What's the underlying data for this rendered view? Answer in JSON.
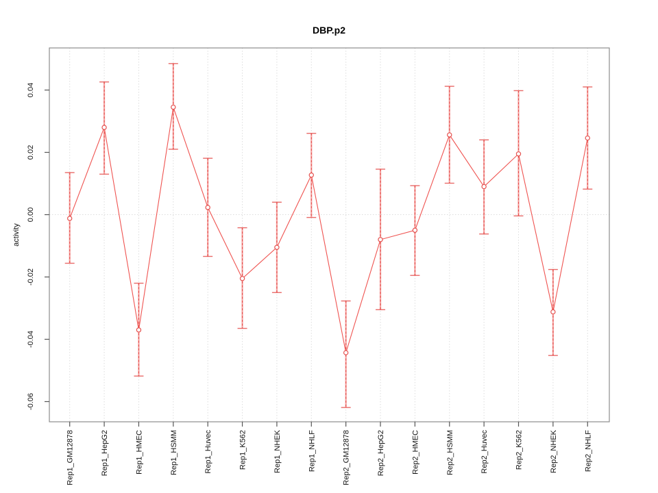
{
  "figure": {
    "background": "#ffffff"
  },
  "chart_data": {
    "type": "line",
    "title": "DBP.p2",
    "xlabel": "",
    "ylabel": "activity",
    "legend": "none",
    "grid": "vertical dotted gridline at each category; horizontal dotted line at y=0 only",
    "ylim": [
      -0.065,
      0.05
    ],
    "y_tick_values": [
      0.04,
      0.02,
      0.0,
      -0.02,
      -0.04,
      -0.06
    ],
    "y_tick_labels": [
      "0.04",
      "0.02",
      "0.00",
      "-0.02",
      "-0.04",
      "-0.06"
    ],
    "categories": [
      "Rep1_GM12878",
      "Rep1_HepG2",
      "Rep1_HMEC",
      "Rep1_HSMM",
      "Rep1_Huvec",
      "Rep1_K562",
      "Rep1_NHEK",
      "Rep1_NHLF",
      "Rep2_GM12878",
      "Rep2_HepG2",
      "Rep2_HMEC",
      "Rep2_HSMM",
      "Rep2_Huvec",
      "Rep2_K562",
      "Rep2_NHEK",
      "Rep2_NHLF"
    ],
    "series": [
      {
        "name": "activity",
        "marker": "open-circle",
        "values": [
          -0.0012,
          0.028,
          -0.037,
          0.0345,
          0.0023,
          -0.0205,
          -0.0105,
          0.0127,
          -0.0443,
          -0.008,
          -0.005,
          0.0256,
          0.009,
          0.0195,
          -0.0312,
          0.0246
        ],
        "err_low": [
          -0.0156,
          0.013,
          -0.0518,
          0.021,
          -0.0134,
          -0.0365,
          -0.025,
          -0.0009,
          -0.0619,
          -0.0305,
          -0.0195,
          0.0101,
          -0.0062,
          -0.0004,
          -0.0452,
          0.0082
        ],
        "err_high": [
          0.0135,
          0.0426,
          -0.022,
          0.0485,
          0.0181,
          -0.0042,
          0.004,
          0.0261,
          -0.0277,
          0.0146,
          0.0093,
          0.0412,
          0.024,
          0.0398,
          -0.0176,
          0.041
        ]
      }
    ],
    "colors": {
      "line": "#ef5350",
      "point_stroke": "#e5504e",
      "error_bar_soft": "#f5a5a3",
      "error_bar_dash": "#e5504e",
      "grid": "#dcdcdc",
      "box": "#8c8c8c",
      "tick": "#555555",
      "text": "#111111"
    }
  }
}
